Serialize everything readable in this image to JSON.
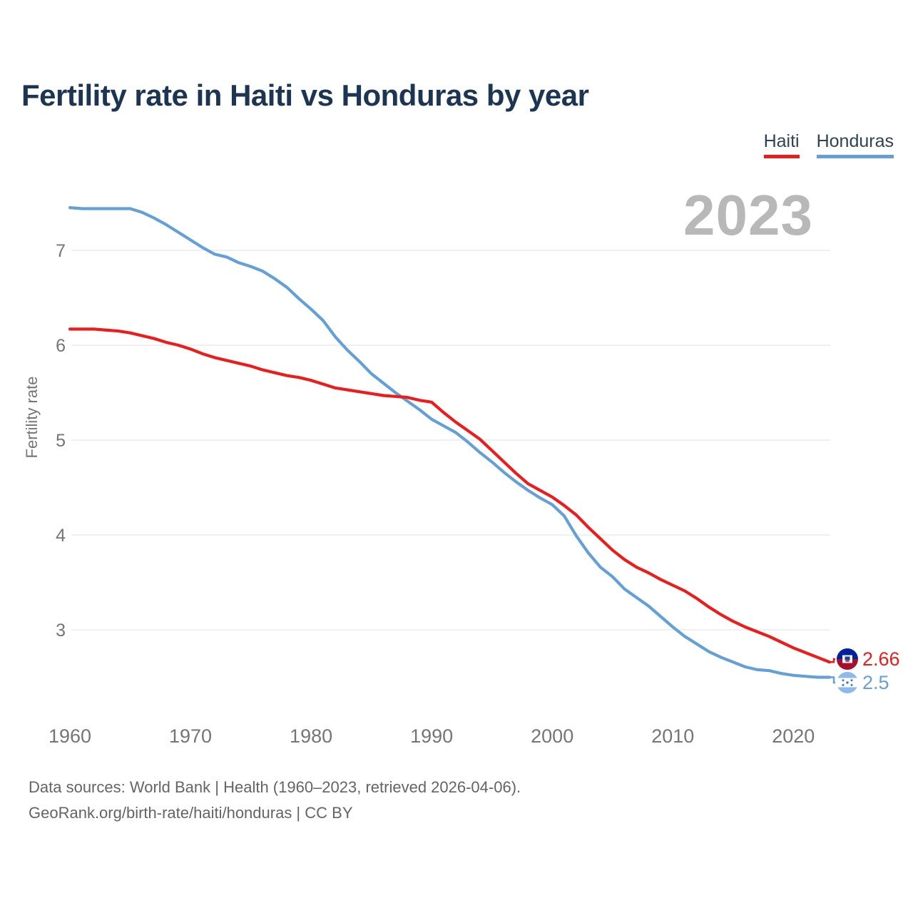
{
  "chart_data": {
    "type": "line",
    "title": "Fertility rate in Haiti vs Honduras by year",
    "xlabel": "",
    "ylabel": "Fertility rate",
    "year_label": "2023",
    "grid": "horizontal",
    "legend_position": "top-right",
    "ylim": [
      2.3,
      7.7
    ],
    "y_ticks": [
      3,
      4,
      5,
      6,
      7
    ],
    "x_ticks": [
      1960,
      1970,
      1980,
      1990,
      2000,
      2010,
      2020
    ],
    "x": [
      1960,
      1961,
      1962,
      1963,
      1964,
      1965,
      1966,
      1967,
      1968,
      1969,
      1970,
      1971,
      1972,
      1973,
      1974,
      1975,
      1976,
      1977,
      1978,
      1979,
      1980,
      1981,
      1982,
      1983,
      1984,
      1985,
      1986,
      1987,
      1988,
      1989,
      1990,
      1991,
      1992,
      1993,
      1994,
      1995,
      1996,
      1997,
      1998,
      1999,
      2000,
      2001,
      2002,
      2003,
      2004,
      2005,
      2006,
      2007,
      2008,
      2009,
      2010,
      2011,
      2012,
      2013,
      2014,
      2015,
      2016,
      2017,
      2018,
      2019,
      2020,
      2021,
      2022,
      2023
    ],
    "series": [
      {
        "name": "Haiti",
        "color": "#ee1b1b",
        "values": [
          6.17,
          6.17,
          6.17,
          6.16,
          6.15,
          6.13,
          6.1,
          6.07,
          6.03,
          6.0,
          5.96,
          5.91,
          5.87,
          5.84,
          5.81,
          5.78,
          5.74,
          5.71,
          5.68,
          5.66,
          5.63,
          5.59,
          5.55,
          5.53,
          5.51,
          5.49,
          5.47,
          5.46,
          5.45,
          5.42,
          5.4,
          5.29,
          5.19,
          5.1,
          5.01,
          4.89,
          4.77,
          4.65,
          4.54,
          4.47,
          4.4,
          4.31,
          4.21,
          4.08,
          3.96,
          3.84,
          3.74,
          3.66,
          3.6,
          3.53,
          3.47,
          3.41,
          3.33,
          3.24,
          3.16,
          3.09,
          3.03,
          2.98,
          2.93,
          2.87,
          2.81,
          2.76,
          2.71,
          2.66
        ]
      },
      {
        "name": "Honduras",
        "color": "#64a0d8",
        "values": [
          7.45,
          7.44,
          7.44,
          7.44,
          7.44,
          7.44,
          7.4,
          7.34,
          7.27,
          7.19,
          7.11,
          7.03,
          6.96,
          6.93,
          6.87,
          6.83,
          6.78,
          6.7,
          6.61,
          6.49,
          6.38,
          6.26,
          6.09,
          5.95,
          5.83,
          5.7,
          5.6,
          5.5,
          5.41,
          5.32,
          5.22,
          5.15,
          5.08,
          4.98,
          4.87,
          4.77,
          4.66,
          4.56,
          4.47,
          4.39,
          4.32,
          4.2,
          3.99,
          3.81,
          3.66,
          3.56,
          3.43,
          3.34,
          3.25,
          3.14,
          3.03,
          2.93,
          2.85,
          2.77,
          2.71,
          2.66,
          2.61,
          2.58,
          2.57,
          2.54,
          2.52,
          2.51,
          2.5,
          2.5
        ]
      }
    ],
    "end_labels": {
      "haiti": "2.66",
      "honduras": "2.5"
    }
  },
  "footer": {
    "line1": "Data sources: World Bank | Health (1960–2023, retrieved 2026-04-06).",
    "line2": "GeoRank.org/birth-rate/haiti/honduras | CC BY"
  }
}
